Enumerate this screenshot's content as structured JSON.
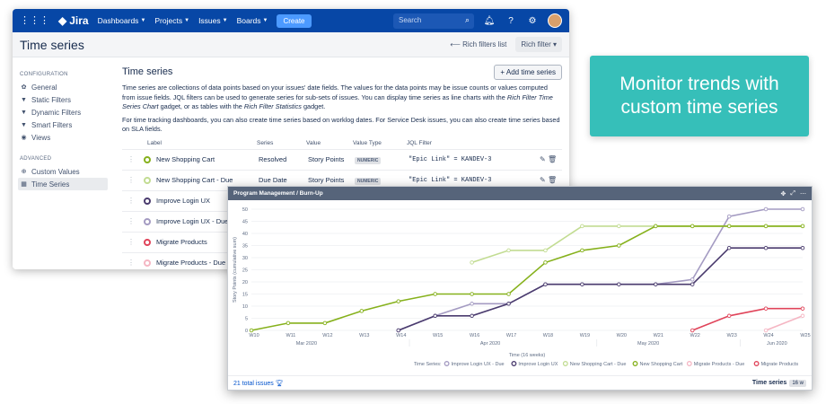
{
  "topnav": {
    "logo": "Jira",
    "dashboards": "Dashboards",
    "projects": "Projects",
    "issues": "Issues",
    "boards": "Boards",
    "create": "Create",
    "search_placeholder": "Search"
  },
  "page": {
    "title": "Time series",
    "back_link": "Rich filters list",
    "filter_button": "Rich filter"
  },
  "sidebar": {
    "section_config": "CONFIGURATION",
    "items": [
      {
        "label": "General",
        "icon": "gear-icon"
      },
      {
        "label": "Static Filters",
        "icon": "filter-icon"
      },
      {
        "label": "Dynamic Filters",
        "icon": "filter-icon"
      },
      {
        "label": "Smart Filters",
        "icon": "filter-icon"
      },
      {
        "label": "Views",
        "icon": "eye-icon"
      }
    ],
    "section_advanced": "ADVANCED",
    "advanced": [
      {
        "label": "Custom Values",
        "icon": "plus-circle-icon"
      },
      {
        "label": "Time Series",
        "icon": "calendar-icon"
      }
    ]
  },
  "main": {
    "heading": "Time series",
    "add_button": "+ Add time series",
    "desc1_a": "Time series are collections of data points based on your issues' date fields. The values for the data points may be issue counts or values computed from issue fields. JQL filters can be used to generate series for sub-sets of issues. You can display time series as line charts with the ",
    "desc1_b": "Rich Filter Time Series Chart",
    "desc1_c": " gadget, or as tables with the ",
    "desc1_d": "Rich Filter Statistics",
    "desc1_e": " gadget.",
    "desc2": "For time tracking dashboards, you can also create time series based on worklog dates. For Service Desk issues, you can also create time series based on SLA fields.",
    "columns": [
      "Label",
      "Series",
      "Value",
      "Value Type",
      "JQL Filter"
    ],
    "rows": [
      {
        "label": "New Shopping Cart",
        "color": "#86b11c",
        "series": "Resolved",
        "value": "Story Points",
        "vtype": "NUMERIC",
        "jql": "\"Epic Link\" = KANDEV-3"
      },
      {
        "label": "New Shopping Cart - Due",
        "color": "#c2dc92",
        "series": "Due Date",
        "value": "Story Points",
        "vtype": "NUMERIC",
        "jql": "\"Epic Link\" = KANDEV-3"
      },
      {
        "label": "Improve Login UX",
        "color": "#4a3b6e",
        "series": "",
        "value": "",
        "vtype": "",
        "jql": ""
      },
      {
        "label": "Improve Login UX - Due",
        "color": "#a49bc2",
        "series": "",
        "value": "",
        "vtype": "",
        "jql": ""
      },
      {
        "label": "Migrate Products",
        "color": "#e0445a",
        "series": "",
        "value": "",
        "vtype": "",
        "jql": ""
      },
      {
        "label": "Migrate Products - Due",
        "color": "#f5b6c3",
        "series": "",
        "value": "",
        "vtype": "",
        "jql": ""
      }
    ]
  },
  "promo": {
    "text": "Monitor trends with custom time series"
  },
  "gadget": {
    "title": "Program Management / Burn-Up",
    "total": "21 total issues",
    "footer_label": "Time series",
    "footer_badge": "16 w"
  },
  "chart_data": {
    "type": "line",
    "x": [
      "W10",
      "W11",
      "W12",
      "W13",
      "W14",
      "W15",
      "W16",
      "W17",
      "W18",
      "W19",
      "W20",
      "W21",
      "W22",
      "W23",
      "W24",
      "W25"
    ],
    "months": [
      "Mar 2020",
      "Apr 2020",
      "May 2020",
      "Jun 2020"
    ],
    "xlabel": "Time (16 weeks)",
    "ylabel": "Story Points (cumulative sum)",
    "ylim": [
      0,
      50
    ],
    "yticks": [
      0,
      5,
      10,
      15,
      20,
      25,
      30,
      35,
      40,
      45,
      50
    ],
    "legend_prefix": "Time Series:",
    "legend_position": "bottom-right",
    "grid": true,
    "series": [
      {
        "name": "Improve Login UX - Due",
        "color": "#a49bc2",
        "values": [
          null,
          null,
          null,
          null,
          0,
          6,
          11,
          11,
          19,
          19,
          19,
          19,
          21,
          47,
          50,
          50
        ]
      },
      {
        "name": "Improve Login UX",
        "color": "#4a3b6e",
        "values": [
          null,
          null,
          null,
          null,
          0,
          6,
          6,
          11,
          19,
          19,
          19,
          19,
          19,
          34,
          34,
          34
        ]
      },
      {
        "name": "New Shopping Cart - Due",
        "color": "#c2dc92",
        "values": [
          null,
          null,
          null,
          null,
          null,
          null,
          28,
          33,
          33,
          43,
          43,
          43,
          43,
          43,
          43,
          43
        ]
      },
      {
        "name": "New Shopping Cart",
        "color": "#86b11c",
        "values": [
          0,
          3,
          3,
          8,
          12,
          15,
          15,
          15,
          28,
          33,
          35,
          43,
          43,
          43,
          43,
          43
        ]
      },
      {
        "name": "Migrate Products - Due",
        "color": "#f5b6c3",
        "values": [
          null,
          null,
          null,
          null,
          null,
          null,
          null,
          null,
          null,
          null,
          null,
          null,
          null,
          null,
          0,
          6
        ]
      },
      {
        "name": "Migrate Products",
        "color": "#e0445a",
        "values": [
          null,
          null,
          null,
          null,
          null,
          null,
          null,
          null,
          null,
          null,
          null,
          null,
          0,
          6,
          9,
          9
        ]
      }
    ]
  }
}
